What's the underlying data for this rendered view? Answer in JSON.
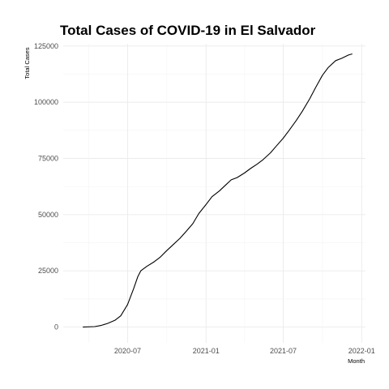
{
  "chart_data": {
    "type": "line",
    "title": "Total Cases of COVID-19 in El Salvador",
    "xlabel": "Month",
    "ylabel": "Total Cases",
    "ylim": [
      -7000,
      126000
    ],
    "xlim": [
      "2020-02-01",
      "2022-01-10"
    ],
    "x_ticks": [
      "2020-07",
      "2021-01",
      "2021-07",
      "2022-01"
    ],
    "y_ticks": [
      0,
      25000,
      50000,
      75000,
      100000,
      125000
    ],
    "y_tick_labels": [
      "0",
      "25000",
      "50000",
      "75000",
      "100000",
      "125000"
    ],
    "grid": true,
    "legend": "none",
    "series": [
      {
        "x": [
          "2020-03-18",
          "2020-04-15",
          "2020-05-01",
          "2020-05-15",
          "2020-06-01",
          "2020-06-15",
          "2020-07-01",
          "2020-07-15",
          "2020-07-25",
          "2020-08-01",
          "2020-08-15",
          "2020-09-01",
          "2020-09-15",
          "2020-10-01",
          "2020-10-15",
          "2020-11-01",
          "2020-11-15",
          "2020-12-01",
          "2020-12-15",
          "2021-01-01",
          "2021-01-15",
          "2021-02-01",
          "2021-02-15",
          "2021-03-01",
          "2021-03-15",
          "2021-04-01",
          "2021-04-15",
          "2021-05-01",
          "2021-05-15",
          "2021-06-01",
          "2021-06-15",
          "2021-07-01",
          "2021-07-15",
          "2021-08-01",
          "2021-08-15",
          "2021-09-01",
          "2021-09-15",
          "2021-10-01",
          "2021-10-15",
          "2021-11-01",
          "2021-11-15",
          "2021-12-01",
          "2021-12-10"
        ],
        "y": [
          0,
          200,
          800,
          1600,
          3000,
          5000,
          10000,
          17000,
          22500,
          25000,
          27000,
          29000,
          31000,
          34000,
          36500,
          39500,
          42500,
          46000,
          50500,
          54500,
          58000,
          60500,
          63000,
          65500,
          66500,
          68500,
          70500,
          72500,
          74500,
          77500,
          80500,
          84000,
          87500,
          92000,
          96000,
          101500,
          106500,
          112000,
          115500,
          118500,
          119500,
          121000,
          121500
        ]
      }
    ]
  }
}
